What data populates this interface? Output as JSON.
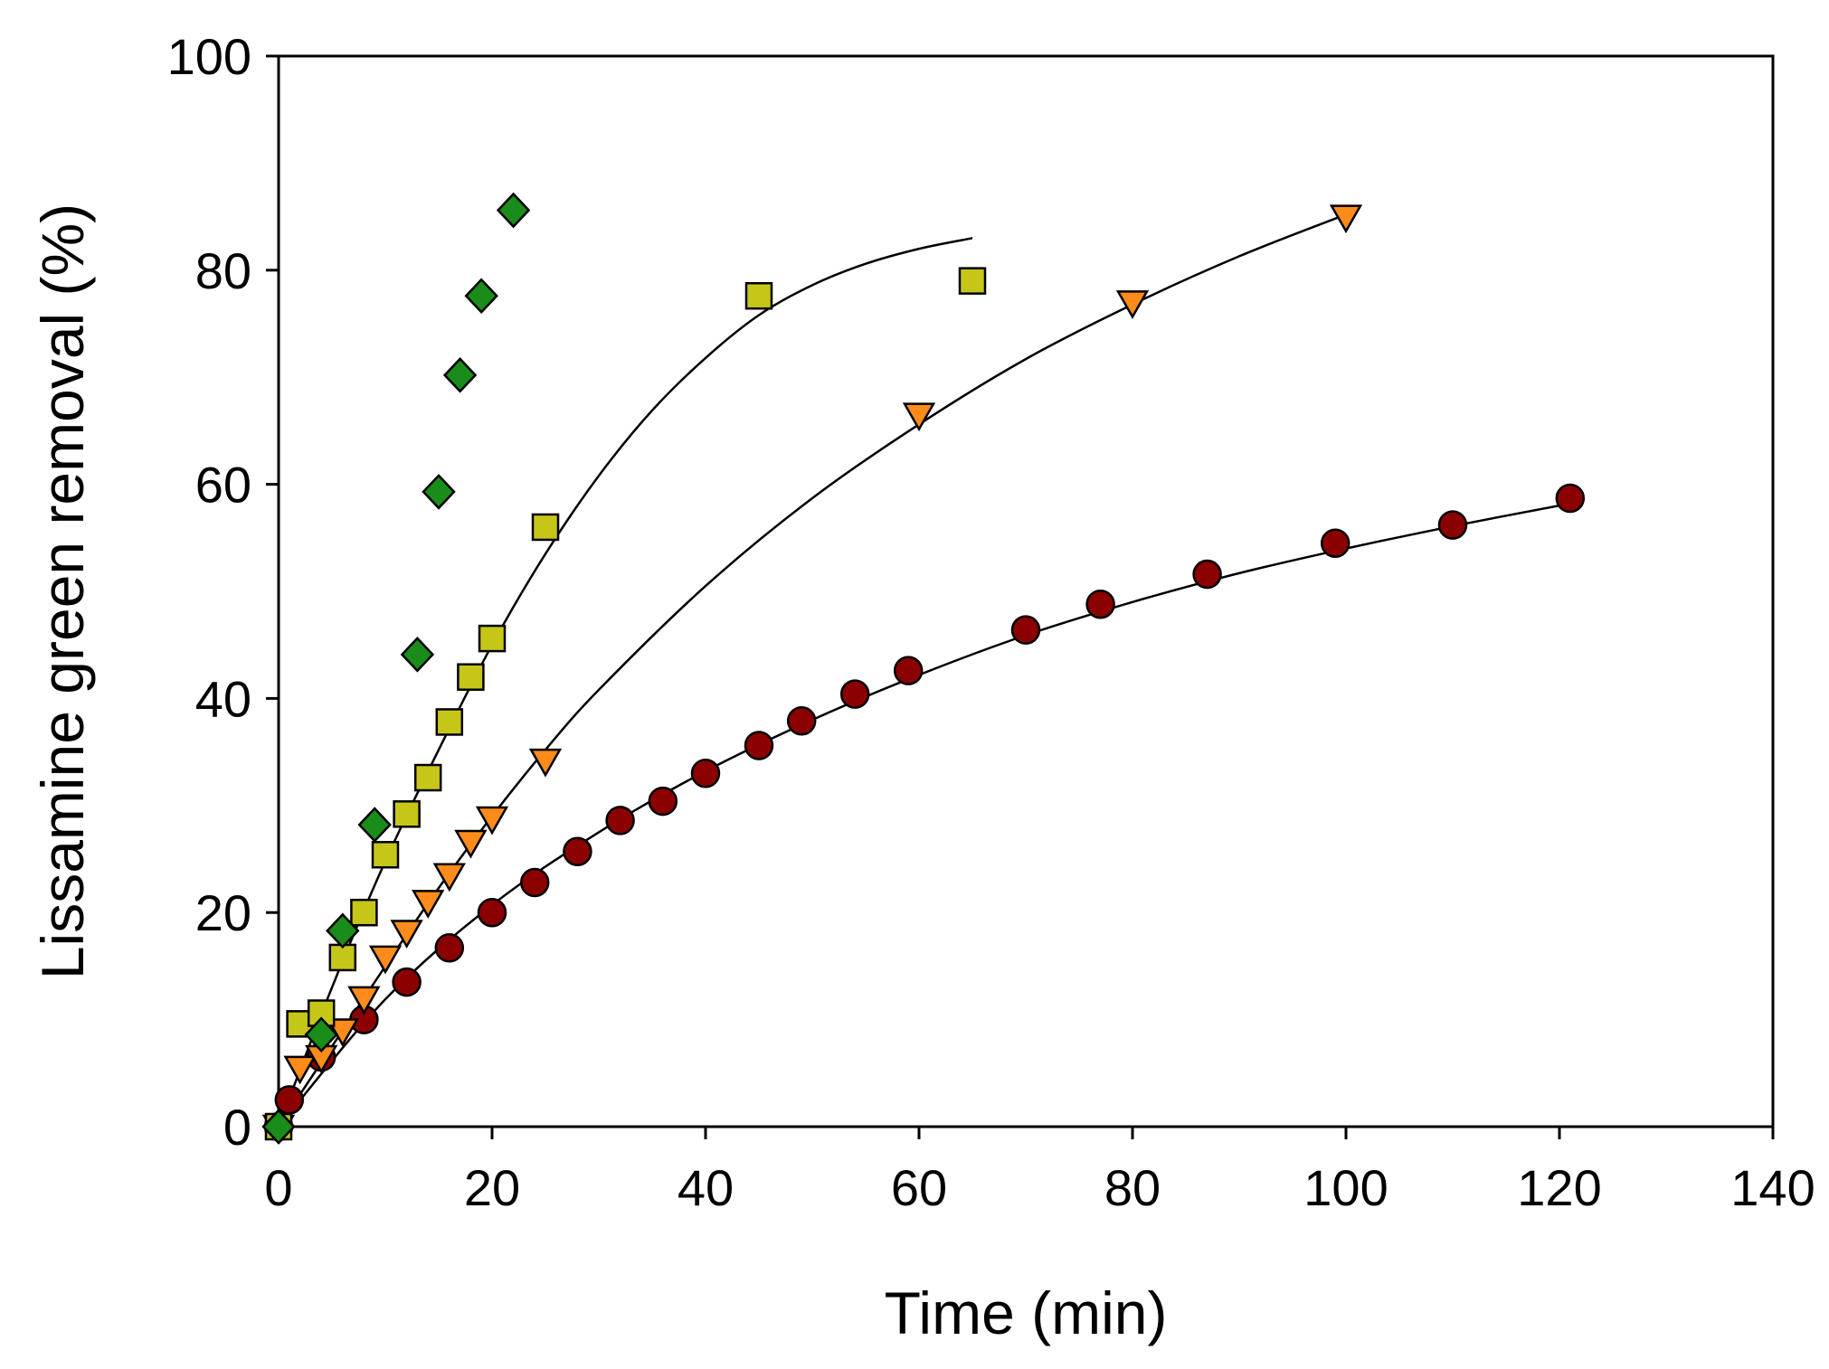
{
  "chart_data": {
    "type": "scatter",
    "title": "",
    "xlabel": "Time (min)",
    "ylabel": "Lissamine green removal (%)",
    "xlim": [
      0,
      140
    ],
    "ylim": [
      0,
      100
    ],
    "xticks": [
      0,
      20,
      40,
      60,
      80,
      100,
      120,
      140
    ],
    "yticks": [
      0,
      20,
      40,
      60,
      80,
      100
    ],
    "grid": false,
    "legend": "none",
    "series": [
      {
        "name": "circles",
        "marker": "circle",
        "color": "#8b0000",
        "x": [
          0,
          1,
          4,
          8,
          12,
          16,
          20,
          24,
          28,
          32,
          36,
          40,
          45,
          49,
          54,
          59,
          70,
          77,
          87,
          99,
          110,
          121
        ],
        "y": [
          0,
          2.5,
          6.5,
          10,
          13.5,
          16.7,
          20,
          22.8,
          25.7,
          28.6,
          30.4,
          33,
          35.6,
          37.9,
          40.4,
          42.6,
          46.4,
          48.8,
          51.6,
          54.5,
          56.2,
          58.7
        ]
      },
      {
        "name": "triangles",
        "marker": "triangle-down",
        "color": "#ff8c1a",
        "x": [
          0,
          2,
          4,
          6,
          8,
          10,
          12,
          14,
          16,
          18,
          20,
          25,
          60,
          80,
          100
        ],
        "y": [
          0,
          5.5,
          6.5,
          9,
          12,
          15.8,
          18.2,
          21,
          23.5,
          26.6,
          28.8,
          34.2,
          66.5,
          77,
          85
        ]
      },
      {
        "name": "squares",
        "marker": "square",
        "color": "#c6c619",
        "x": [
          0,
          2,
          4,
          6,
          8,
          10,
          12,
          14,
          16,
          18,
          20,
          25,
          45,
          65
        ],
        "y": [
          0,
          9.6,
          10.6,
          15.8,
          20,
          25.4,
          29.2,
          32.6,
          37.8,
          42,
          45.6,
          56,
          77.6,
          79
        ]
      },
      {
        "name": "diamonds",
        "marker": "diamond",
        "color": "#1a8c1a",
        "x": [
          0,
          4,
          6,
          9,
          13,
          15,
          17,
          19,
          22
        ],
        "y": [
          0,
          8.6,
          18.3,
          28.2,
          44.1,
          59.3,
          70.2,
          77.6,
          85.6
        ]
      }
    ],
    "fits": [
      {
        "name": "circles-fit",
        "x": [
          0,
          10,
          20,
          30,
          40,
          50,
          60,
          70,
          80,
          90,
          100,
          110,
          121
        ],
        "y": [
          0,
          11.9,
          20.7,
          27.5,
          33.2,
          38.0,
          42.2,
          45.9,
          49.0,
          51.7,
          54.0,
          56.1,
          58.2
        ]
      },
      {
        "name": "triangles-fit",
        "x": [
          0,
          5,
          10,
          15,
          20,
          25,
          30,
          40,
          50,
          60,
          70,
          80,
          90,
          100
        ],
        "y": [
          0,
          7.5,
          15,
          22.3,
          29,
          35.2,
          40.8,
          50.5,
          58.7,
          65.6,
          71.7,
          76.8,
          81.3,
          85.2
        ]
      },
      {
        "name": "squares-fit",
        "x": [
          0,
          5,
          10,
          15,
          20,
          25,
          30,
          35,
          40,
          45,
          50,
          55,
          60,
          65
        ],
        "y": [
          0,
          13,
          24.8,
          35.2,
          45,
          53.5,
          60.8,
          66.9,
          71.8,
          75.8,
          78.6,
          80.6,
          82,
          83
        ]
      }
    ]
  }
}
